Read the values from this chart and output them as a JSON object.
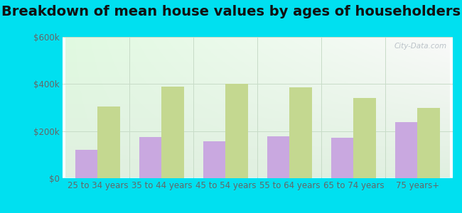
{
  "title": "Breakdown of mean house values by ages of householders",
  "categories": [
    "25 to 34 years",
    "35 to 44 years",
    "45 to 54 years",
    "55 to 64 years",
    "65 to 74 years",
    "75 years+"
  ],
  "indian_lake": [
    120000,
    175000,
    155000,
    178000,
    170000,
    238000
  ],
  "new_york": [
    305000,
    390000,
    400000,
    385000,
    342000,
    298000
  ],
  "indian_lake_color": "#c9a8e0",
  "new_york_color": "#c4d890",
  "bar_width": 0.35,
  "ylim": [
    0,
    600000
  ],
  "yticks": [
    0,
    200000,
    400000,
    600000
  ],
  "ytick_labels": [
    "$0",
    "$200k",
    "$400k",
    "$600k"
  ],
  "background_outer": "#00e0f0",
  "grid_color": "#c8dcc8",
  "title_fontsize": 14,
  "tick_fontsize": 8.5,
  "legend_fontsize": 9.5,
  "watermark": "City-Data.com"
}
